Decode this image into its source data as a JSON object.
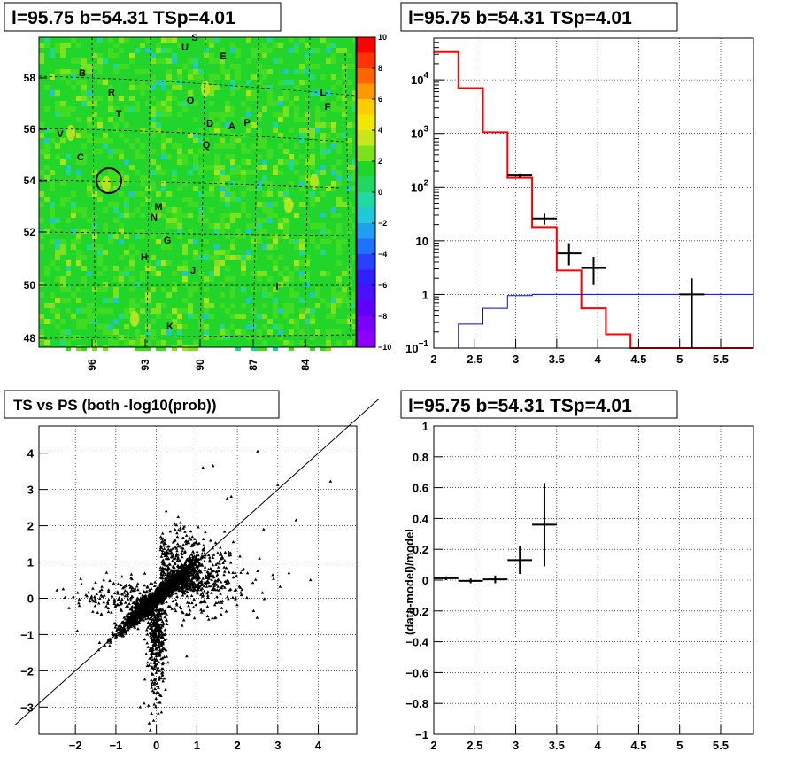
{
  "chart_data": [
    {
      "type": "heatmap",
      "title": "l=95.75 b=54.31 TSp=4.01",
      "x_ticks": [
        "96",
        "93",
        "90",
        "87",
        "84"
      ],
      "y_ticks": [
        "58",
        "56",
        "54",
        "52",
        "50",
        "48"
      ],
      "colorbar": {
        "range": [
          -10,
          10
        ],
        "ticks": [
          "10",
          "8",
          "6",
          "4",
          "2",
          "0",
          "−2",
          "−4",
          "−6",
          "−8",
          "−10"
        ]
      },
      "labels": [
        "S",
        "U",
        "E",
        "B",
        "R",
        "O",
        "L",
        "F",
        "T",
        "D",
        "A",
        "P",
        "V",
        "Q",
        "C",
        "M",
        "N",
        "G",
        "H",
        "J",
        "I",
        "K"
      ],
      "marked_position": {
        "l": 95.75,
        "b": 54.31
      },
      "colors": {
        "background": "#22d52a",
        "high": "#c8e61e",
        "low": "#20c8c0"
      }
    },
    {
      "type": "line",
      "title": "l=95.75 b=54.31 TSp=4.01",
      "xlim": [
        2,
        5.9
      ],
      "ylim": [
        0.1,
        60000
      ],
      "yscale": "log",
      "x_ticks": [
        "2",
        "2.5",
        "3",
        "3.5",
        "4",
        "4.5",
        "5",
        "5.5"
      ],
      "y_ticks": [
        "10^-1",
        "1",
        "10",
        "10^2",
        "10^3",
        "10^4"
      ],
      "series": [
        {
          "color": "#ff0000",
          "style": "step",
          "edges": [
            2,
            2.3,
            2.6,
            2.9,
            3.2,
            3.5,
            3.8,
            4.1,
            4.4,
            5.9
          ],
          "values": [
            33000,
            7000,
            1050,
            150,
            18,
            2.8,
            0.55,
            0.18,
            0.1
          ]
        },
        {
          "color": "#0000ff",
          "style": "step",
          "edges": [
            2,
            2.3,
            2.6,
            2.9,
            3.2,
            5.9
          ],
          "values": [
            0.1,
            0.28,
            0.55,
            0.95,
            1.0
          ]
        },
        {
          "color": "#000000",
          "style": "errorbars",
          "points": [
            {
              "x": 3.05,
              "y": 165,
              "xerr": 0.15,
              "ylo": 150,
              "yhi": 180
            },
            {
              "x": 3.35,
              "y": 26,
              "xerr": 0.15,
              "ylo": 20,
              "yhi": 32
            },
            {
              "x": 3.65,
              "y": 5.8,
              "xerr": 0.15,
              "ylo": 3.5,
              "yhi": 9
            },
            {
              "x": 3.95,
              "y": 3.1,
              "xerr": 0.15,
              "ylo": 1.5,
              "yhi": 5
            },
            {
              "x": 5.15,
              "y": 1.0,
              "xerr": 0.15,
              "ylo": 0.1,
              "yhi": 2
            }
          ]
        }
      ]
    },
    {
      "type": "scatter",
      "title": "TS vs PS (both -log10(prob))",
      "xlim": [
        -2.9,
        4.95
      ],
      "ylim": [
        -3.75,
        4.75
      ],
      "x_ticks": [
        -2,
        -1,
        0,
        1,
        2,
        3,
        4
      ],
      "y_ticks": [
        -3,
        -2,
        -1,
        0,
        1,
        2,
        3,
        4
      ],
      "reference_line": "y = x",
      "outliers": [
        [
          2.5,
          4.05
        ],
        [
          1.15,
          3.6
        ],
        [
          1.4,
          3.65
        ],
        [
          3.0,
          3.12
        ],
        [
          4.3,
          3.22
        ],
        [
          3.45,
          2.15
        ],
        [
          1.75,
          2.75
        ],
        [
          1.85,
          2.8
        ],
        [
          -2.3,
          0.25
        ],
        [
          -1.95,
          -0.9
        ],
        [
          -1.45,
          -0.4
        ],
        [
          -0.4,
          -3.0
        ],
        [
          -0.3,
          -2.9
        ],
        [
          1.9,
          1.55
        ],
        [
          2.1,
          0.1
        ],
        [
          2.5,
          0.75
        ],
        [
          2.4,
          -0.35
        ],
        [
          0.75,
          -1.6
        ],
        [
          -1.3,
          0.5
        ],
        [
          -1.6,
          0.05
        ],
        [
          2.65,
          1.9
        ]
      ]
    },
    {
      "type": "scatter",
      "title": "l=95.75 b=54.31 TSp=4.01",
      "ylabel": "(data-model)/model",
      "xlim": [
        2,
        5.9
      ],
      "ylim": [
        -1,
        1
      ],
      "x_ticks": [
        "2",
        "2.5",
        "3",
        "3.5",
        "4",
        "4.5",
        "5",
        "5.5"
      ],
      "y_ticks": [
        "1",
        "0.8",
        "0.6",
        "0.4",
        "0.2",
        "0",
        "−0.2",
        "−0.4",
        "−0.6",
        "−0.8",
        "−1"
      ],
      "points": [
        {
          "x": 2.15,
          "y": 0.012,
          "xerr": 0.15,
          "ylo": 0.0,
          "yhi": 0.024
        },
        {
          "x": 2.45,
          "y": -0.005,
          "xerr": 0.15,
          "ylo": -0.02,
          "yhi": 0.01
        },
        {
          "x": 2.75,
          "y": 0.005,
          "xerr": 0.15,
          "ylo": -0.02,
          "yhi": 0.03
        },
        {
          "x": 3.05,
          "y": 0.13,
          "xerr": 0.15,
          "ylo": 0.04,
          "yhi": 0.22
        },
        {
          "x": 3.35,
          "y": 0.36,
          "xerr": 0.15,
          "ylo": 0.09,
          "yhi": 0.63
        }
      ]
    }
  ]
}
